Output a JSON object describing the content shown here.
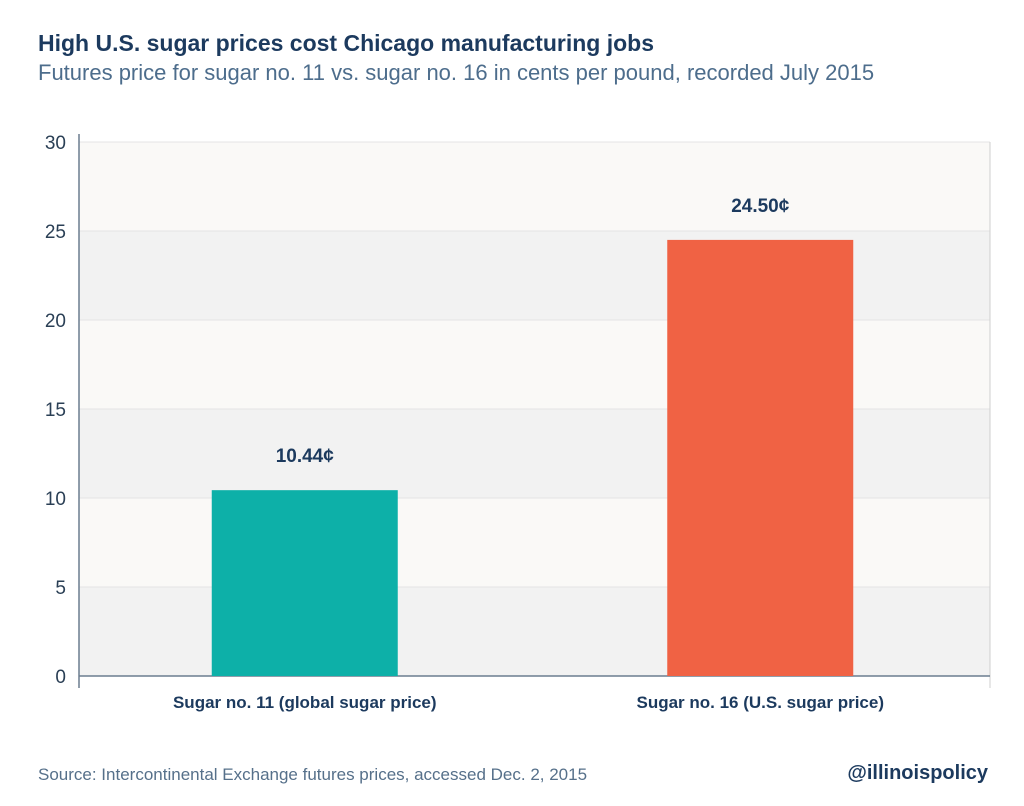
{
  "header": {
    "title": "High U.S. sugar prices cost Chicago manufacturing jobs",
    "subtitle": "Futures price for sugar no. 11 vs. sugar no. 16 in cents per pound, recorded July 2015"
  },
  "footer": {
    "source": "Source: Intercontinental Exchange futures prices, accessed Dec. 2, 2015",
    "handle": "@illinoispolicy"
  },
  "chart_data": {
    "type": "bar",
    "categories": [
      "Sugar no. 11 (global sugar price)",
      "Sugar no. 16 (U.S. sugar price)"
    ],
    "values": [
      10.44,
      24.5
    ],
    "value_labels": [
      "10.44¢",
      "24.50¢"
    ],
    "colors": [
      "#0db0a8",
      "#f06244"
    ],
    "ylim": [
      0,
      30
    ],
    "yticks": [
      0,
      5,
      10,
      15,
      20,
      25,
      30
    ],
    "xlabel": "",
    "ylabel": "",
    "grid": true,
    "band_colors": [
      "#f2f2f2",
      "#faf9f7"
    ]
  }
}
